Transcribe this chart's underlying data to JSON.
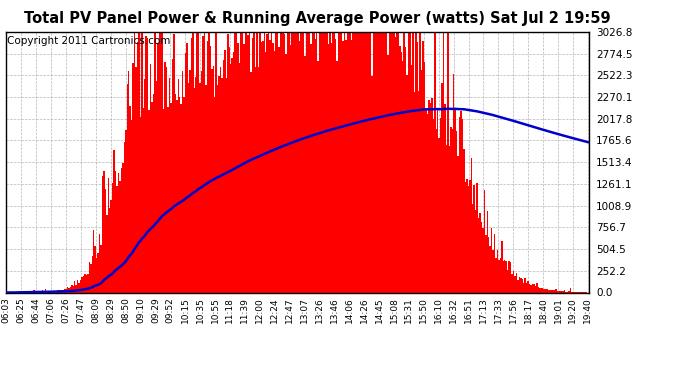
{
  "title": "Total PV Panel Power & Running Average Power (watts) Sat Jul 2 19:59",
  "copyright": "Copyright 2011 Cartronics.com",
  "y_max": 3026.8,
  "y_ticks": [
    0.0,
    252.2,
    504.5,
    756.7,
    1008.9,
    1261.1,
    1513.4,
    1765.6,
    2017.8,
    2270.1,
    2522.3,
    2774.5,
    3026.8
  ],
  "x_labels": [
    "06:03",
    "06:25",
    "06:44",
    "07:06",
    "07:26",
    "07:47",
    "08:09",
    "08:29",
    "08:50",
    "09:10",
    "09:29",
    "09:52",
    "10:15",
    "10:35",
    "10:55",
    "11:18",
    "11:39",
    "12:00",
    "12:24",
    "12:47",
    "13:07",
    "13:26",
    "13:46",
    "14:06",
    "14:26",
    "14:45",
    "15:08",
    "15:31",
    "15:50",
    "16:10",
    "16:32",
    "16:51",
    "17:13",
    "17:33",
    "17:56",
    "18:17",
    "18:40",
    "19:01",
    "19:20",
    "19:40"
  ],
  "bar_color": "#FF0000",
  "line_color": "#0000CC",
  "background_color": "#FFFFFF",
  "grid_color": "#999999",
  "title_fontsize": 10.5,
  "copyright_fontsize": 7.5,
  "tick_fontsize": 7.5,
  "xlabel_fontsize": 6.5
}
